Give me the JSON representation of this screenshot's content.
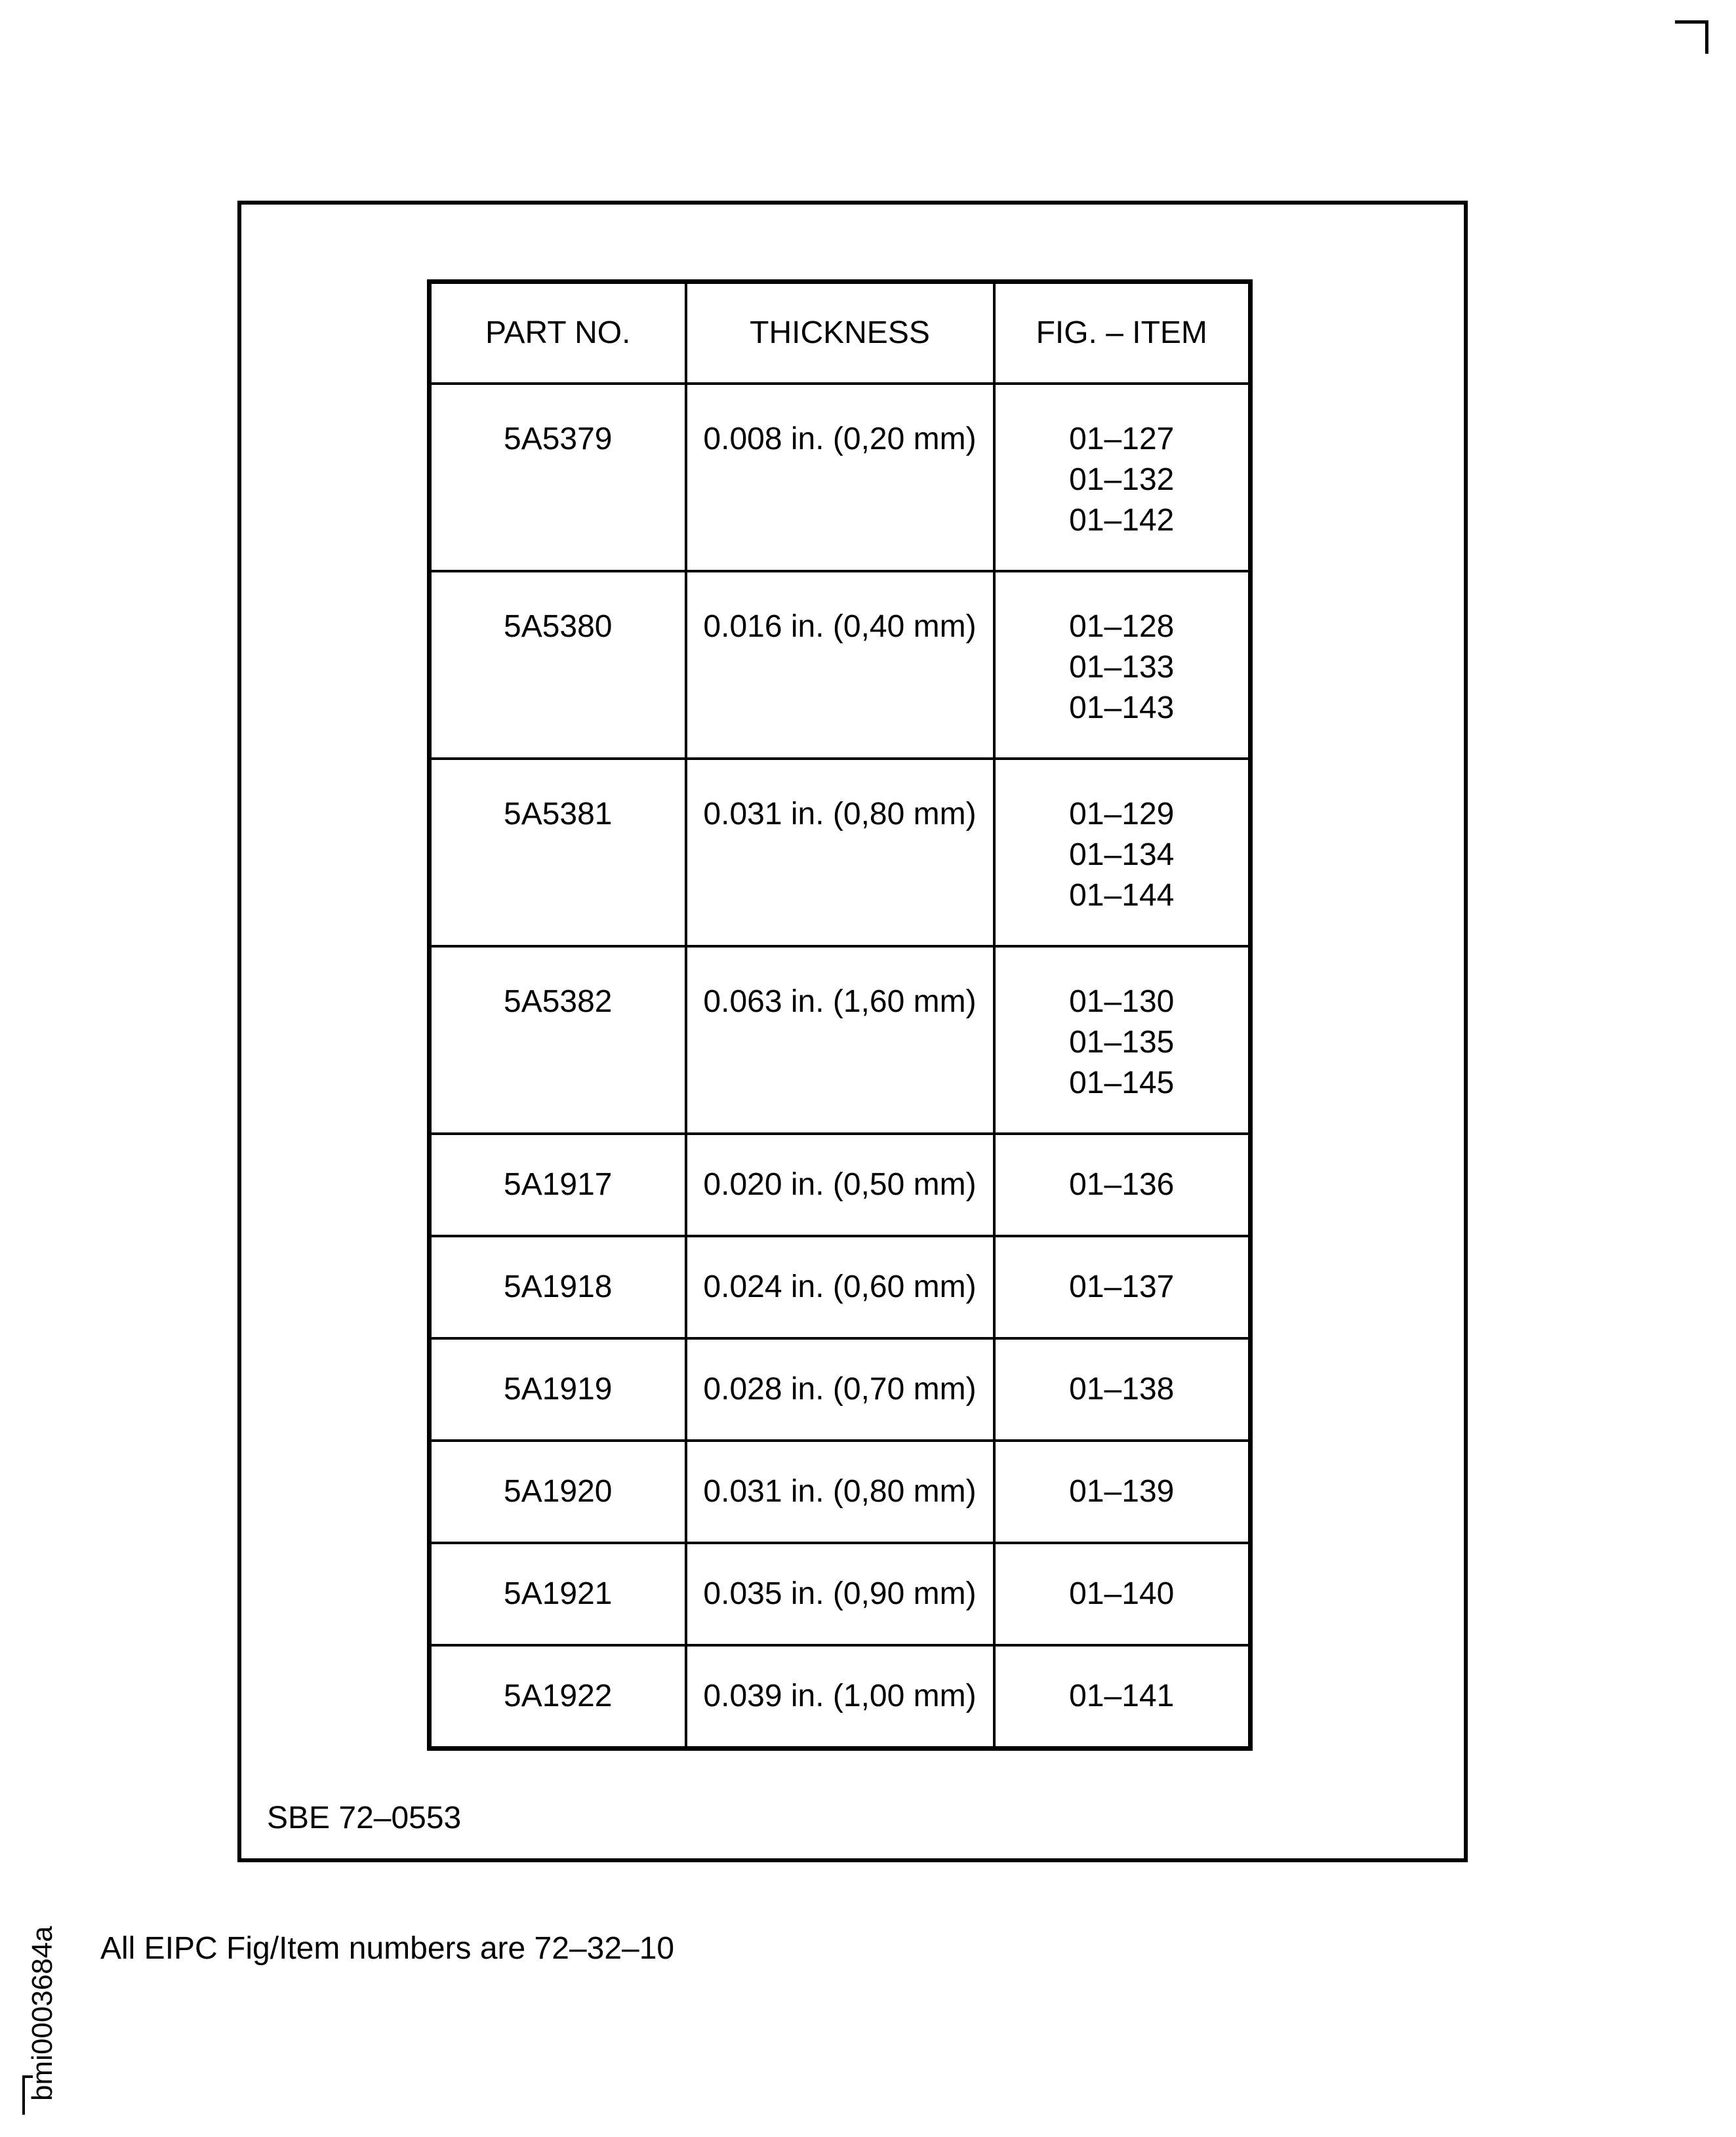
{
  "table": {
    "headers": [
      "PART NO.",
      "THICKNESS",
      "FIG. – ITEM"
    ],
    "rows": [
      {
        "part": "5A5379",
        "thickness": "0.008 in. (0,20 mm)",
        "items": [
          "01–127",
          "01–132",
          "01–142"
        ]
      },
      {
        "part": "5A5380",
        "thickness": "0.016 in. (0,40 mm)",
        "items": [
          "01–128",
          "01–133",
          "01–143"
        ]
      },
      {
        "part": "5A5381",
        "thickness": "0.031 in. (0,80 mm)",
        "items": [
          "01–129",
          "01–134",
          "01–144"
        ]
      },
      {
        "part": "5A5382",
        "thickness": "0.063 in. (1,60 mm)",
        "items": [
          "01–130",
          "01–135",
          "01–145"
        ]
      },
      {
        "part": "5A1917",
        "thickness": "0.020 in. (0,50 mm)",
        "items": [
          "01–136"
        ]
      },
      {
        "part": "5A1918",
        "thickness": "0.024 in. (0,60 mm)",
        "items": [
          "01–137"
        ]
      },
      {
        "part": "5A1919",
        "thickness": "0.028 in. (0,70 mm)",
        "items": [
          "01–138"
        ]
      },
      {
        "part": "5A1920",
        "thickness": "0.031 in. (0,80 mm)",
        "items": [
          "01–139"
        ]
      },
      {
        "part": "5A1921",
        "thickness": "0.035 in. (0,90 mm)",
        "items": [
          "01–140"
        ]
      },
      {
        "part": "5A1922",
        "thickness": "0.039 in. (1,00 mm)",
        "items": [
          "01–141"
        ]
      }
    ]
  },
  "sbe_reference": "SBE 72–0553",
  "footnote": "All EIPC Fig/Item numbers are 72–32–10",
  "figure_id": "bmi0003684a"
}
